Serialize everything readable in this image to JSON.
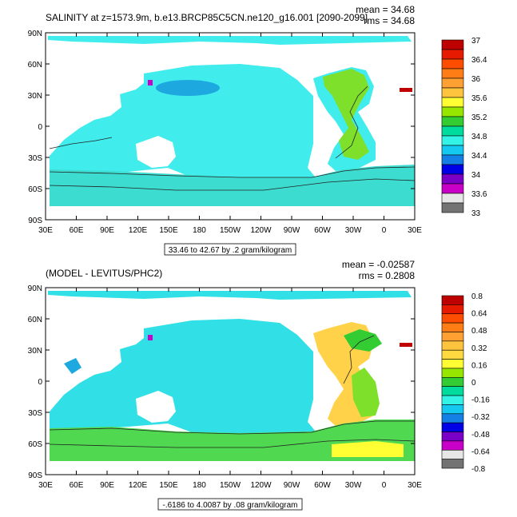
{
  "panels": [
    {
      "id": "top",
      "title": "SALINITY at z=1573.9m, b.e13.BRCP85C5CN.ne120_g16.001 [2090-2099]",
      "mean": "mean = 34.68",
      "rms": "rms = 34.68",
      "range_note": "33.46 to 42.67 by .2 gram/kilogram",
      "lat_ticks": [
        "90N",
        "60N",
        "30N",
        "0",
        "30S",
        "60S",
        "90S"
      ],
      "lon_ticks": [
        "30E",
        "60E",
        "90E",
        "120E",
        "150E",
        "180",
        "150W",
        "120W",
        "90W",
        "60W",
        "30W",
        "0",
        "30E"
      ],
      "colorbar": {
        "colors": [
          "#bf0000",
          "#e61a00",
          "#ff4d00",
          "#ff7d14",
          "#ffa033",
          "#ffc43d",
          "#ffff33",
          "#96e600",
          "#33cc33",
          "#00dc9e",
          "#33f2e6",
          "#14c8f0",
          "#1480e6",
          "#0000e6",
          "#7a00c8",
          "#c800c8",
          "#e6e6e6",
          "#737373"
        ],
        "labels": [
          "37",
          "36.4",
          "36",
          "35.6",
          "35.2",
          "34.8",
          "34.4",
          "34",
          "33.6",
          "33"
        ]
      }
    },
    {
      "id": "bottom",
      "title": "(MODEL - LEVITUS/PHC2)",
      "mean": "mean = -0.02587",
      "rms": "rms = 0.2808",
      "range_note": "-.6186 to 4.0087 by .08 gram/kilogram",
      "lat_ticks": [
        "90N",
        "60N",
        "30N",
        "0",
        "30S",
        "60S",
        "90S"
      ],
      "lon_ticks": [
        "30E",
        "60E",
        "90E",
        "120E",
        "150E",
        "180",
        "150W",
        "120W",
        "90W",
        "60W",
        "30W",
        "0",
        "30E"
      ],
      "colorbar": {
        "colors": [
          "#bf0000",
          "#e61a00",
          "#ff4d00",
          "#ff7d14",
          "#ffa033",
          "#ffc43d",
          "#ffd940",
          "#ffff33",
          "#96e600",
          "#33cc33",
          "#00dc9e",
          "#33f2e6",
          "#14c8f0",
          "#1480e6",
          "#0000e6",
          "#7a00c8",
          "#c800c8",
          "#e6e6e6",
          "#737373"
        ],
        "labels": [
          "0.8",
          "0.64",
          "0.48",
          "0.32",
          "0.16",
          "0",
          "-0.16",
          "-0.32",
          "-0.48",
          "-0.64",
          "-0.8"
        ]
      }
    }
  ],
  "colors": {
    "ocean_top": "#40ecec",
    "ocean_bottom": "#30e0e6",
    "land": "#ffffff",
    "antarctic_band": "#3cdcd0",
    "atlantic_green": "#7ee02a",
    "atlantic_yellow": "#ffd24a",
    "deep_blue": "#1ea8e0",
    "southern_green": "#50d850"
  },
  "chart_data": [
    {
      "type": "heatmap",
      "title": "SALINITY at z=1573.9m, b.e13.BRCP85C5CN.ne120_g16.001 [2090-2099]",
      "units": "gram/kilogram",
      "x_axis": "longitude",
      "x_range": [
        "30E",
        "30E"
      ],
      "y_axis": "latitude",
      "y_range": [
        "90S",
        "90N"
      ],
      "contour_min": 33.46,
      "contour_max": 42.67,
      "contour_interval": 0.2,
      "mean": 34.68,
      "rms": 34.68,
      "colorbar_labels": [
        37,
        36.4,
        36,
        35.6,
        35.2,
        34.8,
        34.4,
        34,
        33.6,
        33
      ]
    },
    {
      "type": "heatmap",
      "title": "(MODEL - LEVITUS/PHC2)",
      "units": "gram/kilogram",
      "x_axis": "longitude",
      "x_range": [
        "30E",
        "30E"
      ],
      "y_axis": "latitude",
      "y_range": [
        "90S",
        "90N"
      ],
      "contour_min": -0.6186,
      "contour_max": 4.0087,
      "contour_interval": 0.08,
      "mean": -0.02587,
      "rms": 0.2808,
      "colorbar_labels": [
        0.8,
        0.64,
        0.48,
        0.32,
        0.16,
        0,
        -0.16,
        -0.32,
        -0.48,
        -0.64,
        -0.8
      ]
    }
  ]
}
